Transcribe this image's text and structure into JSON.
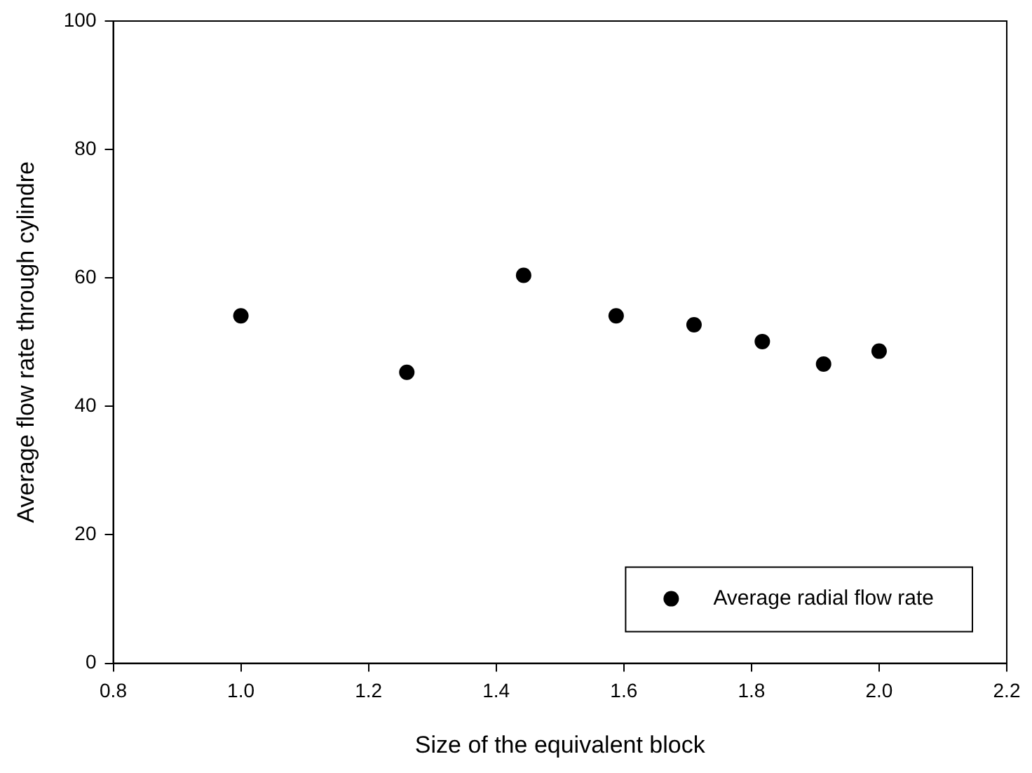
{
  "chart_data": {
    "type": "scatter",
    "xlabel": "Size of the equivalent block",
    "ylabel": "Average flow rate through cylindre",
    "x": [
      1.0,
      1.26,
      1.443,
      1.588,
      1.71,
      1.817,
      1.913,
      2.0
    ],
    "series": [
      {
        "name": "Average radial flow rate",
        "color": "#000000",
        "values": [
          54.1,
          45.3,
          60.4,
          54.1,
          52.7,
          50.1,
          46.6,
          48.6
        ]
      }
    ],
    "xlim": [
      0.8,
      2.2
    ],
    "xticks": [
      0.8,
      {
        "value": 1,
        "label": "1.0"
      },
      1.2,
      1.4,
      1.6,
      1.8,
      {
        "value": 2,
        "label": "2.0"
      },
      2.2
    ],
    "ylim": [
      0,
      100
    ],
    "yticks": [
      0,
      20,
      40,
      60,
      80,
      100
    ],
    "grid": false,
    "legend": "bottom right",
    "marker": "circle"
  }
}
